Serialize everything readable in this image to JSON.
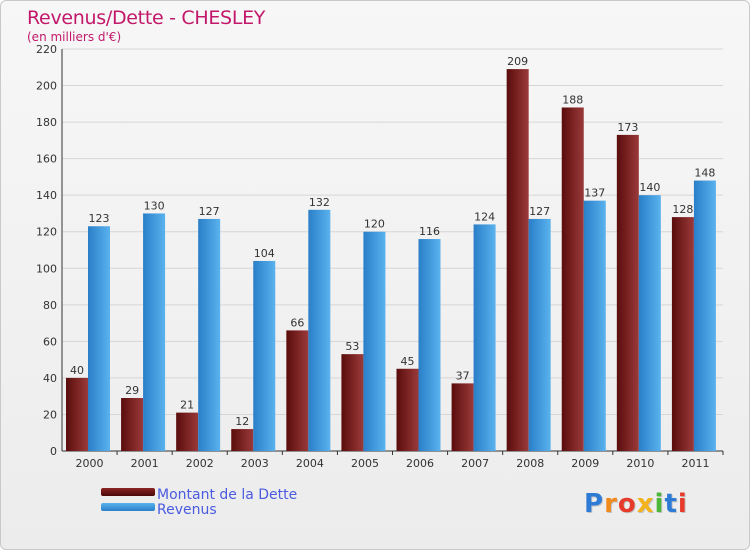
{
  "chart_data": {
    "type": "bar",
    "title": "Revenus/Dette - CHESLEY",
    "subtitle": "(en milliers d'€)",
    "categories": [
      "2000",
      "2001",
      "2002",
      "2003",
      "2004",
      "2005",
      "2006",
      "2007",
      "2008",
      "2009",
      "2010",
      "2011"
    ],
    "series": [
      {
        "name": "Montant de la Dette",
        "color": "#7a1c1c",
        "values": [
          40,
          29,
          21,
          12,
          66,
          53,
          45,
          37,
          209,
          188,
          173,
          128
        ]
      },
      {
        "name": "Revenus",
        "color": "#3d9be3",
        "values": [
          123,
          130,
          127,
          104,
          132,
          120,
          116,
          124,
          127,
          137,
          140,
          148
        ]
      }
    ],
    "ylim": [
      0,
      220
    ],
    "yticks": [
      0,
      20,
      40,
      60,
      80,
      100,
      120,
      140,
      160,
      180,
      200,
      220
    ],
    "grid": true,
    "legend_position": "bottom-left"
  },
  "logo": {
    "text": "Proxiti",
    "colors": [
      "#2e7bd6",
      "#f08a1c",
      "#e63a2a",
      "#f2b21c",
      "#4bb63a",
      "#2e7bd6",
      "#e63a2a"
    ]
  }
}
